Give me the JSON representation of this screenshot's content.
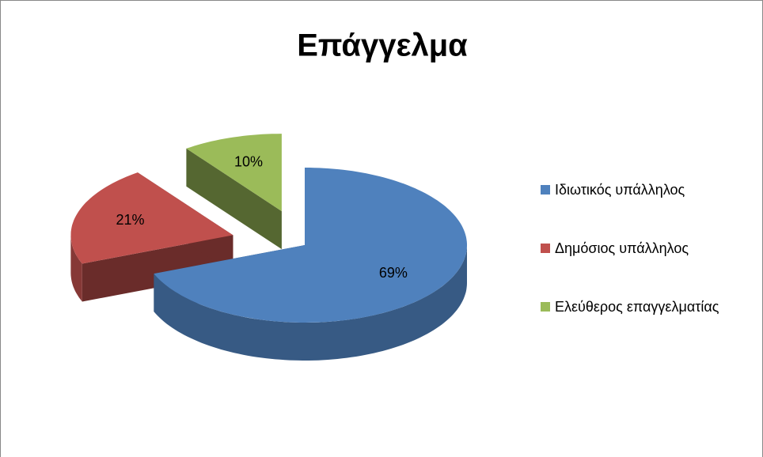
{
  "chart_data": {
    "type": "pie3d",
    "title": "Επάγγελμα",
    "categories": [
      "Ιδιωτικός υπάλληλος",
      "Δημόσιος υπάλληλος",
      "Ελεύθερος επαγγελματίας"
    ],
    "values": [
      69,
      21,
      10
    ],
    "value_labels": [
      "69%",
      "21%",
      "10%"
    ],
    "colors": [
      "#4f81bd",
      "#c0504d",
      "#9bbb59"
    ],
    "legend": "right"
  }
}
